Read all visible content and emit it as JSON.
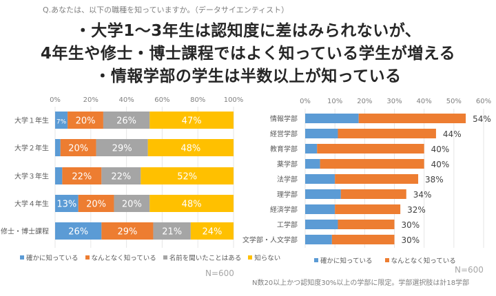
{
  "question": "Q.あなたは、以下の職種を知っていますか。（データサイエンティスト）",
  "headline": {
    "line1": "・大学1～3年生は認知度に差はみられないが、",
    "line2": "4年生や修士・博士課程ではよく知っている学生が増える",
    "line3": "・情報学部の学生は半数以上が知っている"
  },
  "colors": {
    "blue": "#5B9BD5",
    "orange": "#ED7D31",
    "gray": "#A5A5A5",
    "yellow": "#FFC000"
  },
  "chart_data": [
    {
      "type": "bar",
      "orientation": "horizontal",
      "stacked": "percent",
      "title": "",
      "categories": [
        "大学１年生",
        "大学２年生",
        "大学３年生",
        "大学４年生",
        "修士・博士課程"
      ],
      "series": [
        {
          "name": "確かに知っている",
          "color": "#5B9BD5",
          "values": [
            7,
            3,
            4,
            13,
            26
          ],
          "labels": [
            "7%",
            "",
            "",
            "13%",
            "26%"
          ]
        },
        {
          "name": "なんとなく知っている",
          "color": "#ED7D31",
          "values": [
            20,
            20,
            22,
            20,
            29
          ],
          "labels": [
            "20%",
            "20%",
            "22%",
            "20%",
            "29%"
          ]
        },
        {
          "name": "名前を聞いたことはある",
          "color": "#A5A5A5",
          "values": [
            26,
            29,
            22,
            20,
            21
          ],
          "labels": [
            "26%",
            "29%",
            "22%",
            "20%",
            "21%"
          ]
        },
        {
          "name": "知らない",
          "color": "#FFC000",
          "values": [
            47,
            48,
            52,
            48,
            24
          ],
          "labels": [
            "47%",
            "48%",
            "52%",
            "48%",
            "24%"
          ]
        }
      ],
      "xticks": [
        "0%",
        "20%",
        "40%",
        "60%",
        "80%",
        "100%"
      ],
      "xlim": [
        0,
        100
      ],
      "grid": true,
      "legend": "bottom",
      "note": "N=600"
    },
    {
      "type": "bar",
      "orientation": "horizontal",
      "stacked": true,
      "title": "",
      "categories": [
        "情報学部",
        "経営学部",
        "教育学部",
        "薬学部",
        "法学部",
        "理学部",
        "経済学部",
        "工学部",
        "文学部・人文学部"
      ],
      "series": [
        {
          "name": "確かに知っている",
          "color": "#5B9BD5",
          "values": [
            18,
            11,
            4,
            5,
            10,
            12,
            10,
            11,
            9
          ]
        },
        {
          "name": "なんとなく知っている",
          "color": "#ED7D31",
          "values": [
            36,
            33,
            36,
            35,
            28,
            22,
            22,
            19,
            21
          ]
        }
      ],
      "totals": [
        "54%",
        "44%",
        "40%",
        "40%",
        "38%",
        "34%",
        "32%",
        "30%",
        "30%"
      ],
      "total_values": [
        54,
        44,
        40,
        40,
        38,
        34,
        32,
        30,
        30
      ],
      "xticks": [
        "0%",
        "10%",
        "20%",
        "30%",
        "40%",
        "50%",
        "60%"
      ],
      "xlim": [
        0,
        60
      ],
      "grid": true,
      "legend": "bottom",
      "note": "N=600"
    }
  ],
  "left_legend": [
    "確かに知っている",
    "なんとなく知っている",
    "名前を聞いたことはある",
    "知らない"
  ],
  "right_legend": [
    "確かに知っている",
    "なんとなく知っている"
  ],
  "left_n": "N=600",
  "right_n": "N=600",
  "footnote": "N数20以上かつ認知度30%以上の学部に限定。学部選択肢は計18学部"
}
